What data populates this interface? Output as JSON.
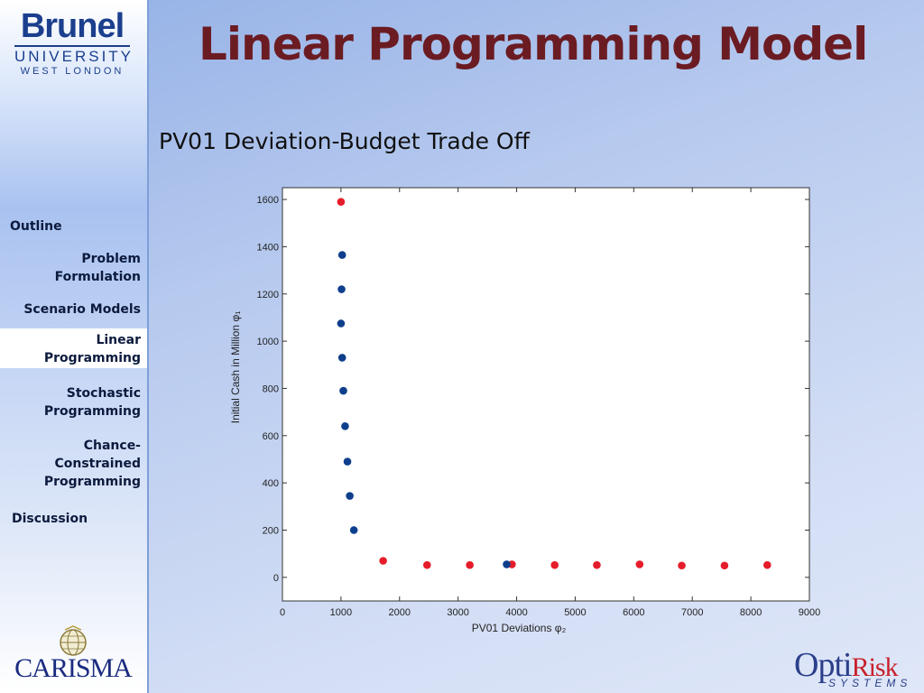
{
  "slide": {
    "title": "Linear Programming Model",
    "subtitle": "PV01 Deviation-Budget Trade Off"
  },
  "logos": {
    "brunel": {
      "name": "Brunel",
      "line2": "UNIVERSITY",
      "line3": "WEST LONDON"
    },
    "carisma": {
      "name": "CARISMA"
    },
    "optirisk": {
      "name_prefix": "Opti",
      "name_suffix": "Risk",
      "tagline": "SYSTEMS"
    }
  },
  "sidebar": {
    "items": [
      {
        "label": "Outline",
        "active": false
      },
      {
        "label": "Problem Formulation",
        "lines": [
          "Problem",
          "Formulation"
        ],
        "active": false
      },
      {
        "label": "Scenario Models",
        "active": false
      },
      {
        "label": "Linear Programming",
        "lines": [
          "Linear",
          "Programming"
        ],
        "active": true
      },
      {
        "label": "Stochastic Programming",
        "lines": [
          "Stochastic",
          "Programming"
        ],
        "active": false
      },
      {
        "label": "Chance-Constrained Programming",
        "lines": [
          "Chance-",
          "Constrained",
          "Programming"
        ],
        "active": false
      },
      {
        "label": "Discussion",
        "active": false
      }
    ]
  },
  "colors": {
    "title": "#6b1c22",
    "red_series": "#e51d2a",
    "blue_series": "#0f3f8c",
    "active_nav_bg": "#ffffff"
  },
  "chart_data": {
    "type": "scatter",
    "xlabel": "PV01 Deviations φ₂",
    "ylabel": "Initial Cash in Million φ₁",
    "xlim": [
      0,
      9000
    ],
    "ylim": [
      -100,
      1650
    ],
    "xticks": [
      0,
      1000,
      2000,
      3000,
      4000,
      5000,
      6000,
      7000,
      8000,
      9000
    ],
    "yticks": [
      0,
      200,
      400,
      600,
      800,
      1000,
      1200,
      1400,
      1600
    ],
    "grid": false,
    "series": [
      {
        "color": "#e51d2a",
        "points": [
          [
            1000,
            1590
          ],
          [
            1720,
            70
          ],
          [
            2470,
            52
          ],
          [
            3200,
            52
          ],
          [
            3920,
            55
          ],
          [
            4650,
            52
          ],
          [
            5370,
            52
          ],
          [
            6100,
            55
          ],
          [
            6820,
            50
          ],
          [
            7550,
            50
          ],
          [
            8280,
            52
          ]
        ]
      },
      {
        "color": "#0f3f8c",
        "points": [
          [
            1020,
            1365
          ],
          [
            1010,
            1220
          ],
          [
            1000,
            1075
          ],
          [
            1020,
            930
          ],
          [
            1040,
            790
          ],
          [
            1070,
            640
          ],
          [
            1110,
            490
          ],
          [
            1150,
            345
          ],
          [
            1220,
            200
          ],
          [
            3830,
            55
          ]
        ]
      }
    ]
  }
}
